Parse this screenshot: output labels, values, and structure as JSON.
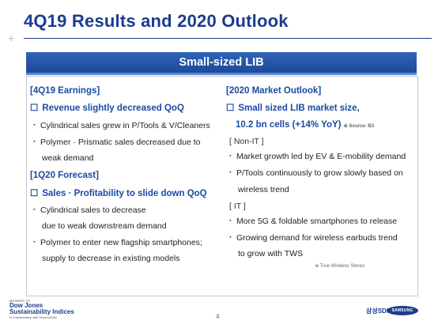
{
  "title": "4Q19 Results and 2020 Outlook",
  "banner": "Small-sized LIB",
  "left": {
    "earnings_header": "[4Q19 Earnings]",
    "earnings_sub": "Revenue slightly decreased QoQ",
    "earnings_b1": "Cylindrical sales grew in P/Tools & V/Cleaners",
    "earnings_b2_l1": "Polymer · Prismatic sales decreased due to",
    "earnings_b2_l2": "weak demand",
    "forecast_header": "[1Q20 Forecast]",
    "forecast_sub": "Sales · Profitability to slide down QoQ",
    "forecast_b1_l1": "Cylindrical sales to decrease",
    "forecast_b1_l2": "due to weak downstream demand",
    "forecast_b2_l1": "Polymer to enter new flagship smartphones;",
    "forecast_b2_l2": "supply to decrease in existing models"
  },
  "right": {
    "outlook_header": "[2020 Market Outlook]",
    "outlook_sub_l1": "Small sized LIB market size,",
    "outlook_sub_l2": "10.2 bn cells (+14% YoY)",
    "source_note": "※ Source: B3",
    "nonit": "[ Non-IT ]",
    "nonit_b1": "Market growth led by EV & E-mobility demand",
    "nonit_b2_l1": "P/Tools continuously to grow slowly based on",
    "nonit_b2_l2": "wireless trend",
    "it": "[ IT ]",
    "it_b1": "More 5G & foldable smartphones to release",
    "it_b2_l1": "Growing demand for wireless earbuds trend",
    "it_b2_l2": "to grow with TWS",
    "tws_note": "※ True Wireless Stereo"
  },
  "footer": {
    "dj_top": "MEMBER OF",
    "dj_line1": "Dow Jones",
    "dj_line2": "Sustainability Indices",
    "dj_sub": "In Collaboration with RobecoSAM",
    "page": "4",
    "sdi": "삼성SDI",
    "samsung": "SAMSUNG"
  },
  "colors": {
    "accent": "#1a3d8f",
    "banner": "#2f63b8"
  }
}
